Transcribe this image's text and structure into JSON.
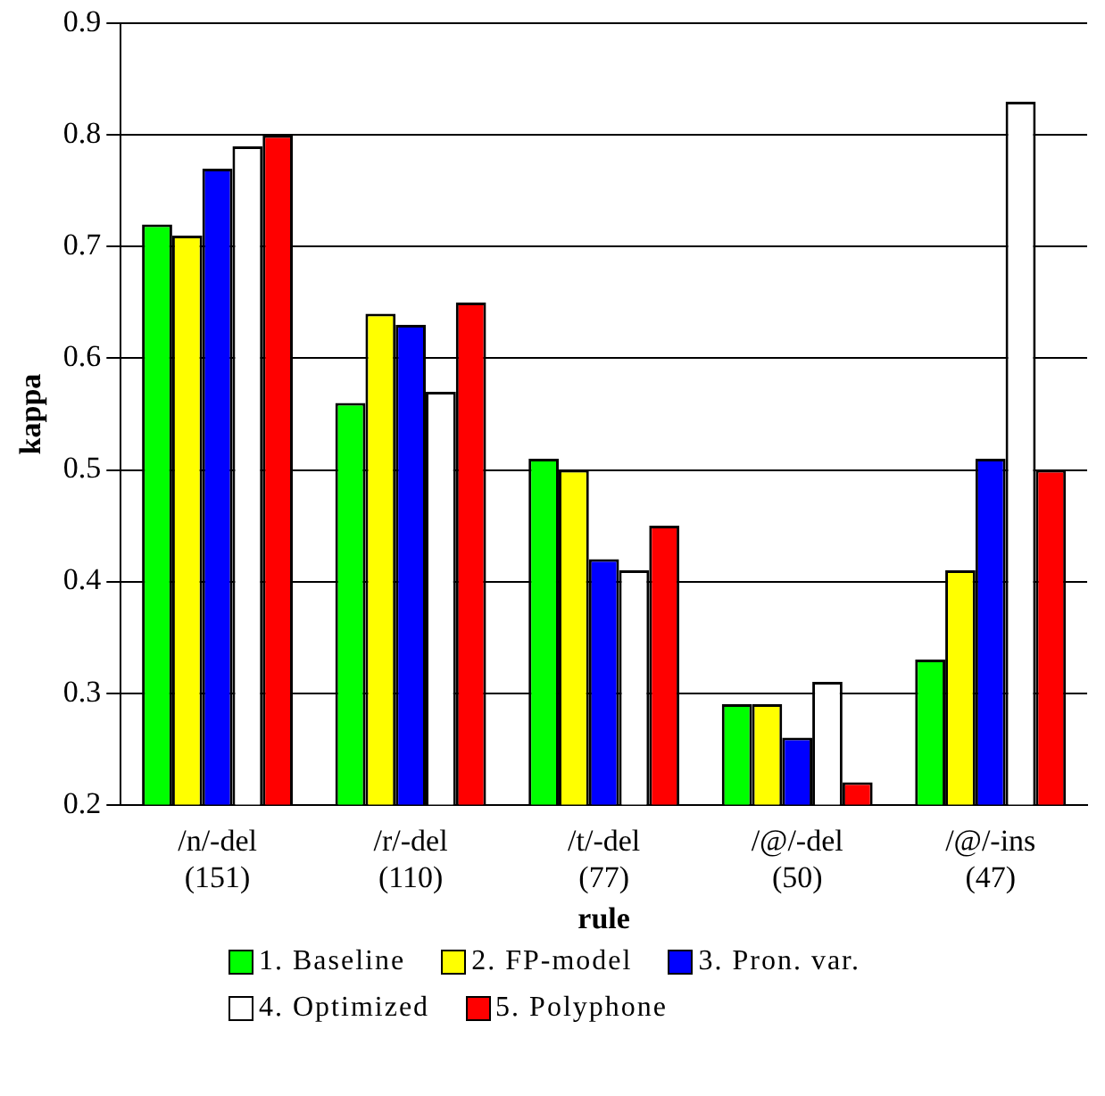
{
  "chart_data": {
    "type": "bar",
    "xlabel": "rule",
    "ylabel": "kappa",
    "categories": [
      "/n/-del\n(151)",
      "/r/-del\n(110)",
      "/t/-del\n(77)",
      "/@/-del\n(50)",
      "/@/-ins\n(47)"
    ],
    "series": [
      {
        "name": "1. Baseline",
        "color": "#00ff00",
        "values": [
          0.72,
          0.56,
          0.51,
          0.29,
          0.33
        ]
      },
      {
        "name": "2. FP-model",
        "color": "#ffff00",
        "values": [
          0.71,
          0.64,
          0.5,
          0.29,
          0.41
        ]
      },
      {
        "name": "3. Pron. var.",
        "color": "#0000ff",
        "values": [
          0.77,
          0.63,
          0.42,
          0.26,
          0.51
        ]
      },
      {
        "name": "4. Optimized",
        "color": "#ffffff",
        "values": [
          0.79,
          0.57,
          0.41,
          0.31,
          0.83
        ]
      },
      {
        "name": "5. Polyphone",
        "color": "#ff0000",
        "values": [
          0.8,
          0.65,
          0.45,
          0.22,
          0.5
        ]
      }
    ],
    "ylim": [
      0.2,
      0.9
    ],
    "yticks": [
      0.2,
      0.3,
      0.4,
      0.5,
      0.6,
      0.7,
      0.8,
      0.9
    ],
    "grid": "y",
    "legend": "bottom"
  }
}
